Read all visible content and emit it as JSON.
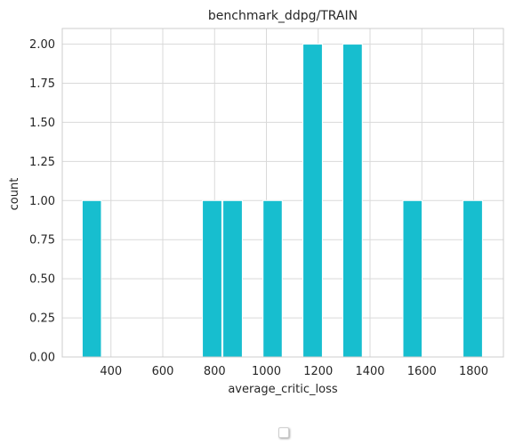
{
  "chart_data": {
    "type": "bar",
    "title": "benchmark_ddpg/TRAIN",
    "xlabel": "average_critic_loss",
    "ylabel": "count",
    "xlim": [
      212,
      1915
    ],
    "ylim": [
      0,
      2.1
    ],
    "bar_color": "#17becf",
    "grid": true,
    "x_ticks": [
      400,
      600,
      800,
      1000,
      1200,
      1400,
      1600,
      1800
    ],
    "y_ticks": [
      "0.00",
      "0.25",
      "0.50",
      "0.75",
      "1.00",
      "1.25",
      "1.50",
      "1.75",
      "2.00"
    ],
    "bins": [
      {
        "x0": 289,
        "x1": 363,
        "count": 1
      },
      {
        "x0": 753,
        "x1": 828,
        "count": 1
      },
      {
        "x0": 832,
        "x1": 907,
        "count": 1
      },
      {
        "x0": 907,
        "x1": 982,
        "count": 0
      },
      {
        "x0": 987,
        "x1": 1061,
        "count": 1
      },
      {
        "x0": 1141,
        "x1": 1216,
        "count": 2
      },
      {
        "x0": 1295,
        "x1": 1370,
        "count": 2
      },
      {
        "x0": 1527,
        "x1": 1601,
        "count": 1
      },
      {
        "x0": 1759,
        "x1": 1834,
        "count": 1
      }
    ],
    "legend": {
      "placement": "bottom-center",
      "entries": []
    }
  }
}
